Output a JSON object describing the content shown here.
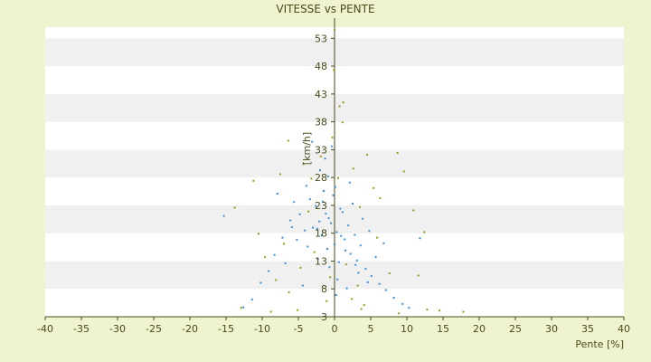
{
  "chart_data": {
    "type": "scatter",
    "title": "VITESSE vs PENTE",
    "xlabel": "Pente [%]",
    "ylabel": "[km/h]",
    "xlim": [
      -40,
      40
    ],
    "ylim": [
      3,
      55
    ],
    "x_ticks": [
      "-40",
      "-35",
      "-30",
      "-25",
      "-20",
      "-15",
      "-10",
      "-5",
      "0",
      "5",
      "10",
      "15",
      "20",
      "25",
      "30",
      "35",
      "40"
    ],
    "y_ticks": [
      "3",
      "8",
      "13",
      "18",
      "23",
      "28",
      "33",
      "38",
      "43",
      "48",
      "53"
    ],
    "grid": true,
    "colors": {
      "background": "#eff3cf",
      "band_white": "#ffffff",
      "band_gray": "#f0f0f0",
      "axis": "#4a4a1a",
      "series_a": "#3a8fd8",
      "series_b": "#9a9a1a"
    },
    "series": [
      {
        "color": "#3a8fd8",
        "points": [
          [
            -1.2,
            21.5
          ],
          [
            -0.5,
            19.8
          ],
          [
            0.3,
            18.2
          ],
          [
            -2.1,
            20.1
          ],
          [
            1.4,
            16.9
          ],
          [
            -3.0,
            19.0
          ],
          [
            0.8,
            22.4
          ],
          [
            -1.8,
            17.6
          ],
          [
            2.2,
            14.3
          ],
          [
            -0.2,
            24.8
          ],
          [
            -4.1,
            18.5
          ],
          [
            3.1,
            13.1
          ],
          [
            -2.6,
            22.9
          ],
          [
            1.9,
            19.4
          ],
          [
            -5.2,
            16.8
          ],
          [
            0.1,
            26.3
          ],
          [
            -1.0,
            15.2
          ],
          [
            4.3,
            11.6
          ],
          [
            -3.4,
            24.1
          ],
          [
            2.8,
            17.7
          ],
          [
            -6.1,
            20.3
          ],
          [
            0.6,
            12.8
          ],
          [
            -0.9,
            28.2
          ],
          [
            5.1,
            10.3
          ],
          [
            -2.3,
            13.4
          ],
          [
            1.1,
            21.8
          ],
          [
            -7.2,
            17.2
          ],
          [
            3.6,
            15.8
          ],
          [
            -1.5,
            25.6
          ],
          [
            6.2,
            8.9
          ],
          [
            -4.8,
            21.4
          ],
          [
            0.4,
            9.7
          ],
          [
            -8.3,
            14.1
          ],
          [
            2.5,
            23.3
          ],
          [
            -0.7,
            11.9
          ],
          [
            4.8,
            18.4
          ],
          [
            -3.9,
            26.5
          ],
          [
            7.1,
            7.8
          ],
          [
            -9.1,
            11.2
          ],
          [
            1.7,
            8.1
          ],
          [
            -5.6,
            23.6
          ],
          [
            3.9,
            20.6
          ],
          [
            -2.0,
            29.3
          ],
          [
            8.2,
            6.4
          ],
          [
            -10.2,
            9.1
          ],
          [
            0.2,
            6.9
          ],
          [
            -6.8,
            12.6
          ],
          [
            5.7,
            13.7
          ],
          [
            -1.3,
            31.4
          ],
          [
            9.4,
            5.3
          ],
          [
            -11.4,
            6.1
          ],
          [
            2.1,
            27.1
          ],
          [
            -4.4,
            8.6
          ],
          [
            6.8,
            16.2
          ],
          [
            -12.6,
            4.7
          ],
          [
            -0.4,
            33.6
          ],
          [
            10.3,
            4.6
          ],
          [
            -7.9,
            25.1
          ],
          [
            3.3,
            10.9
          ],
          [
            -15.3,
            21.1
          ],
          [
            11.8,
            17.1
          ],
          [
            -3.1,
            34.4
          ],
          [
            0.0,
            16.0
          ],
          [
            -2.4,
            18.8
          ],
          [
            1.5,
            14.9
          ],
          [
            -0.8,
            20.7
          ],
          [
            2.9,
            12.3
          ],
          [
            -1.6,
            23.7
          ],
          [
            0.9,
            17.5
          ],
          [
            -3.7,
            15.6
          ],
          [
            4.6,
            9.2
          ],
          [
            -5.9,
            19.1
          ]
        ]
      },
      {
        "color": "#9a9a1a",
        "points": [
          [
            0.0,
            54.5
          ],
          [
            -0.1,
            47.3
          ],
          [
            0.7,
            40.8
          ],
          [
            1.2,
            41.5
          ],
          [
            1.1,
            37.9
          ],
          [
            -0.3,
            35.2
          ],
          [
            -1.9,
            31.8
          ],
          [
            4.5,
            32.1
          ],
          [
            8.7,
            32.4
          ],
          [
            -6.4,
            34.6
          ],
          [
            -4.3,
            30.4
          ],
          [
            9.6,
            29.1
          ],
          [
            -11.2,
            27.4
          ],
          [
            -13.8,
            22.6
          ],
          [
            10.9,
            22.1
          ],
          [
            12.4,
            18.2
          ],
          [
            -10.5,
            17.9
          ],
          [
            -9.6,
            13.7
          ],
          [
            11.6,
            10.4
          ],
          [
            12.8,
            4.3
          ],
          [
            14.5,
            4.1
          ],
          [
            17.8,
            3.9
          ],
          [
            8.9,
            3.6
          ],
          [
            3.7,
            4.4
          ],
          [
            -5.1,
            4.2
          ],
          [
            -8.8,
            3.9
          ],
          [
            -12.9,
            4.6
          ],
          [
            6.3,
            24.3
          ],
          [
            -3.2,
            27.8
          ],
          [
            2.6,
            29.6
          ],
          [
            -7.5,
            28.6
          ],
          [
            5.4,
            26.1
          ],
          [
            -2.8,
            14.6
          ],
          [
            1.6,
            12.4
          ],
          [
            -0.6,
            10.1
          ],
          [
            3.2,
            8.6
          ],
          [
            -4.7,
            11.8
          ],
          [
            2.4,
            6.2
          ],
          [
            -1.1,
            5.8
          ],
          [
            4.1,
            5.1
          ],
          [
            -6.3,
            7.4
          ],
          [
            7.6,
            10.8
          ],
          [
            -8.1,
            9.6
          ],
          [
            0.5,
            27.9
          ],
          [
            -3.6,
            21.9
          ],
          [
            5.9,
            17.2
          ],
          [
            -7.0,
            16.1
          ],
          [
            3.5,
            22.7
          ]
        ]
      }
    ]
  }
}
